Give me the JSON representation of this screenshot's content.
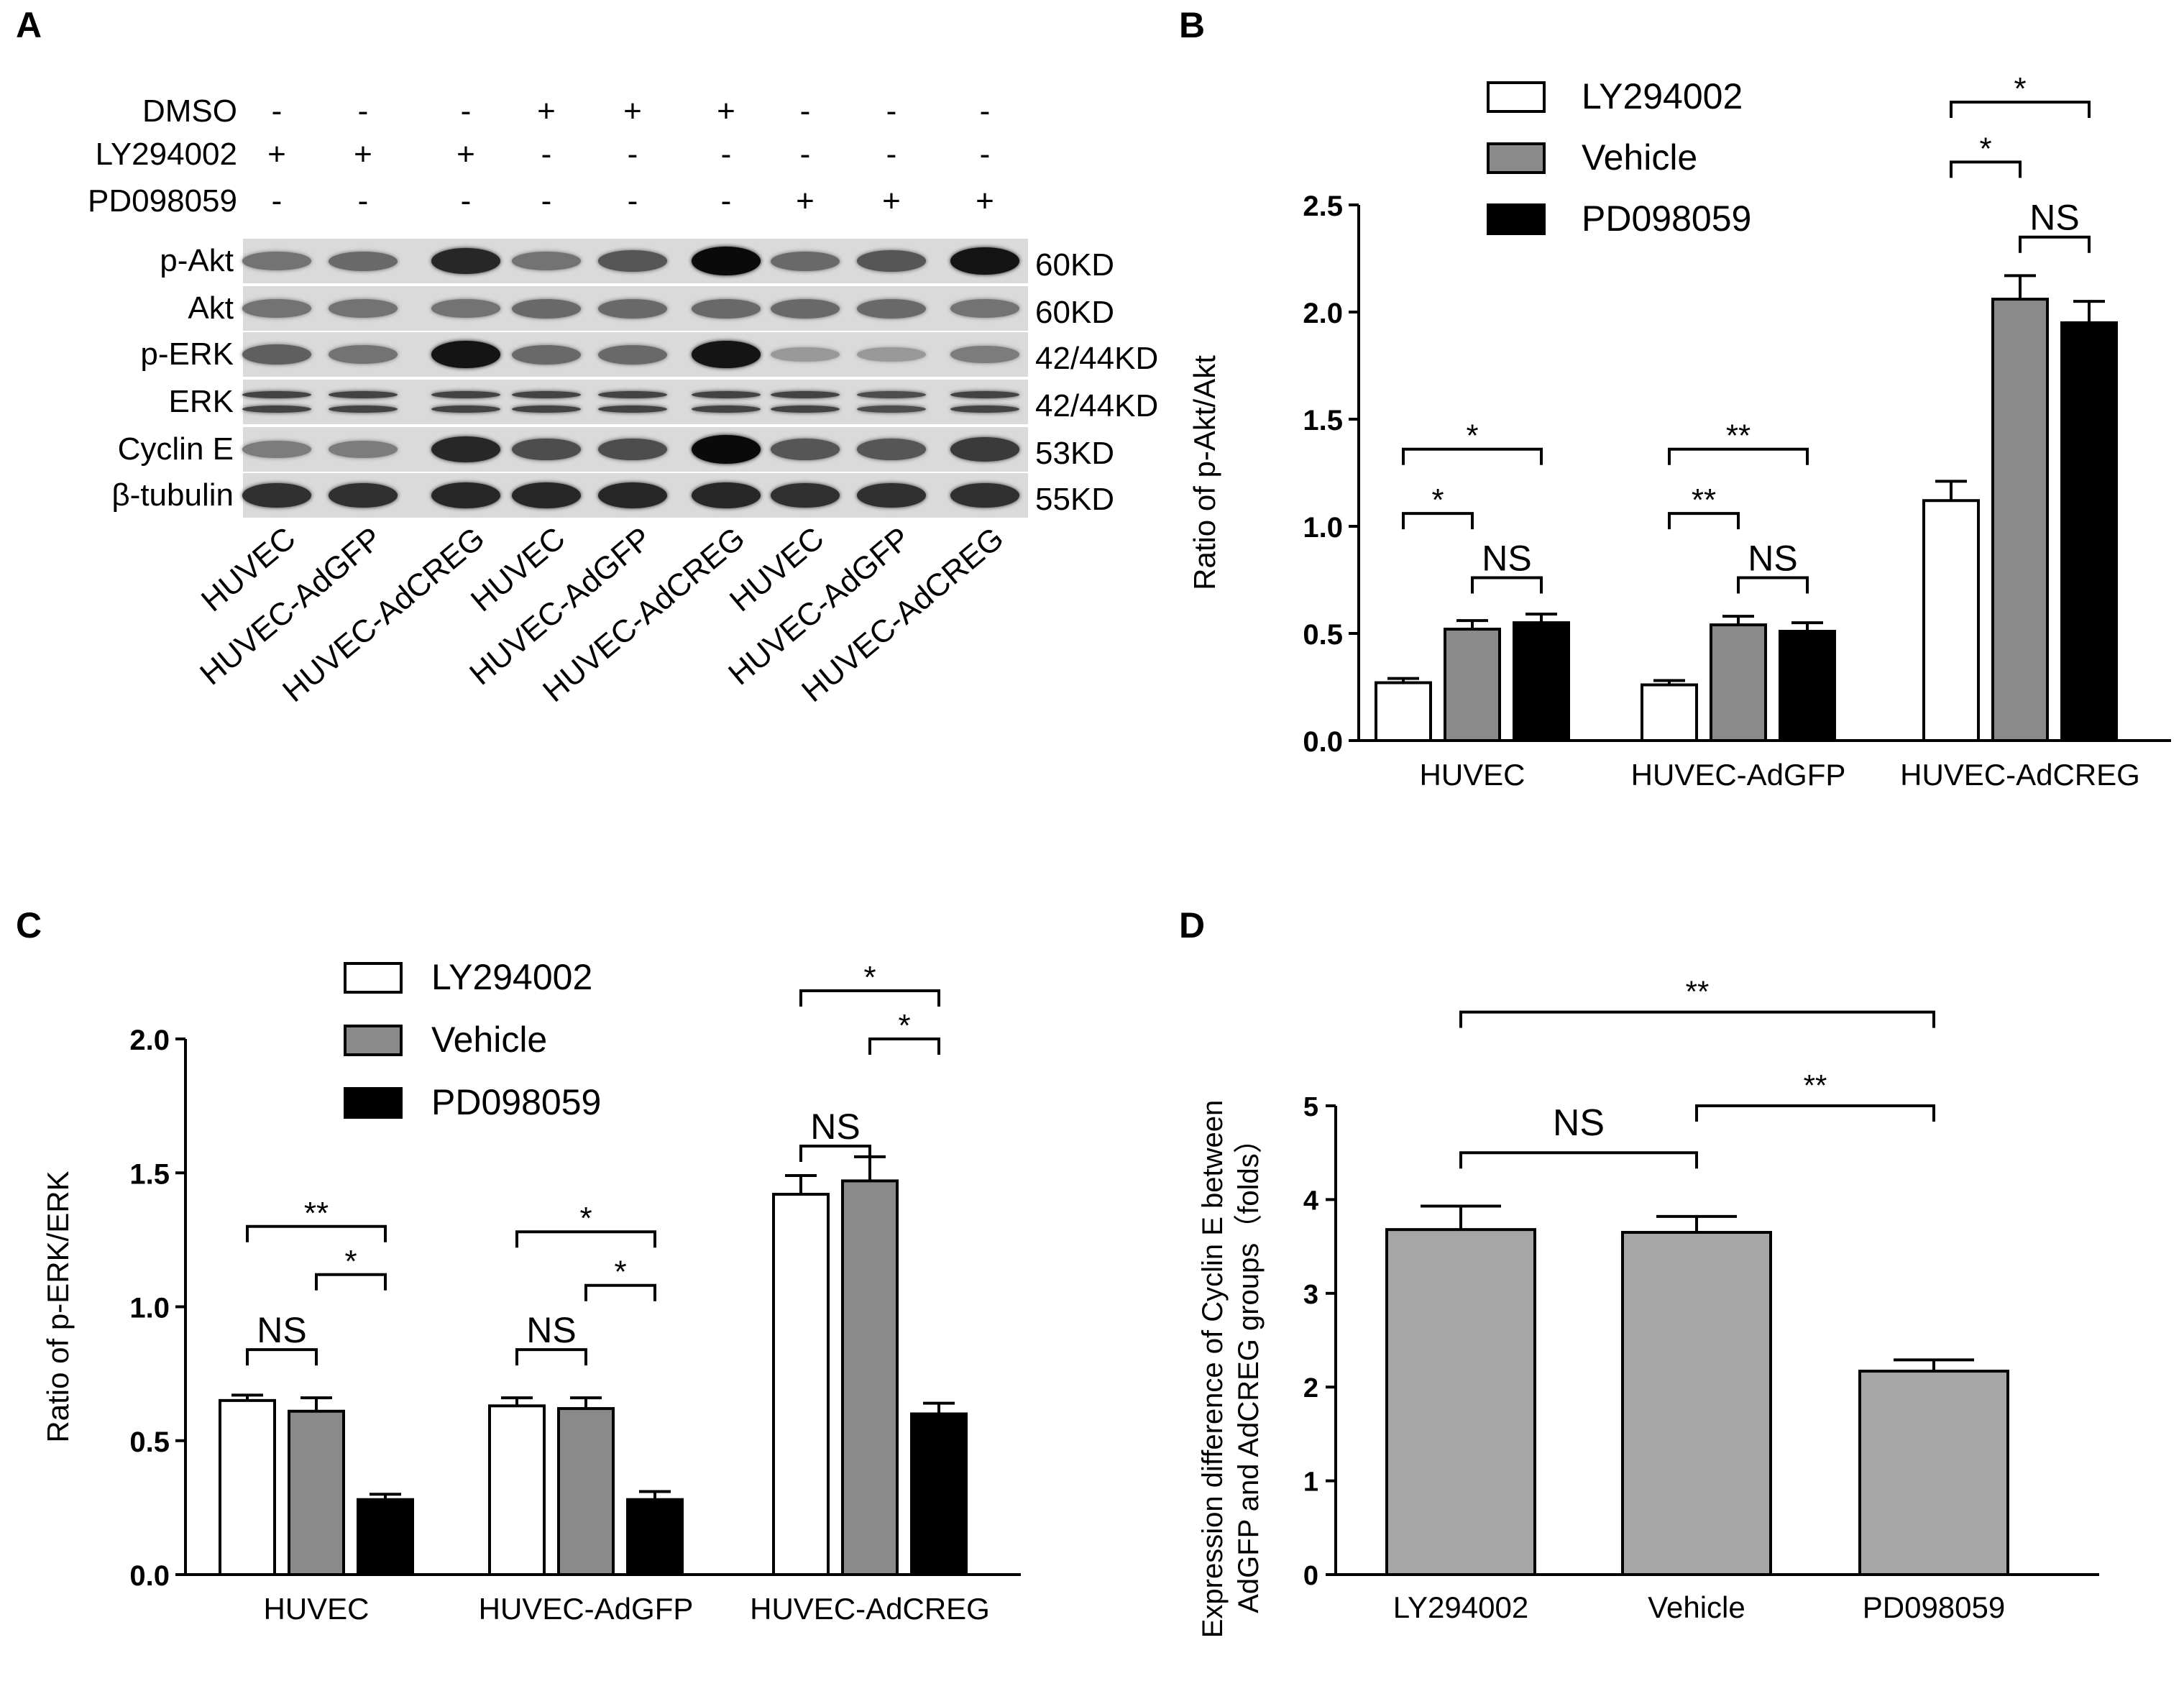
{
  "panels": {
    "a": {
      "letter": "A",
      "treatments": [
        {
          "label": "DMSO",
          "signs": [
            "-",
            "-",
            "-",
            "+",
            "+",
            "+",
            "-",
            "-",
            "-"
          ]
        },
        {
          "label": "LY294002",
          "signs": [
            "+",
            "+",
            "+",
            "-",
            "-",
            "-",
            "-",
            "-",
            "-"
          ]
        },
        {
          "label": "PD098059",
          "signs": [
            "-",
            "-",
            "-",
            "-",
            "-",
            "-",
            "+",
            "+",
            "+"
          ]
        }
      ],
      "blots": [
        {
          "label": "p-Akt",
          "kd": "60KD",
          "intensity": [
            0.45,
            0.5,
            0.85,
            0.45,
            0.6,
            1.0,
            0.5,
            0.6,
            0.95
          ],
          "double": false
        },
        {
          "label": "Akt",
          "kd": "60KD",
          "intensity": [
            0.45,
            0.45,
            0.45,
            0.5,
            0.5,
            0.5,
            0.5,
            0.5,
            0.45
          ],
          "double": false
        },
        {
          "label": "p-ERK",
          "kd": "42/44KD",
          "intensity": [
            0.55,
            0.45,
            0.95,
            0.5,
            0.5,
            0.95,
            0.25,
            0.25,
            0.4
          ],
          "double": false
        },
        {
          "label": "ERK",
          "kd": "42/44KD",
          "intensity": [
            0.7,
            0.7,
            0.7,
            0.7,
            0.7,
            0.7,
            0.7,
            0.65,
            0.7
          ],
          "double": true
        },
        {
          "label": "Cyclin E",
          "kd": "53KD",
          "intensity": [
            0.4,
            0.4,
            0.85,
            0.65,
            0.65,
            1.0,
            0.6,
            0.6,
            0.75
          ],
          "double": false
        },
        {
          "label": "β-tubulin",
          "kd": "55KD",
          "intensity": [
            0.8,
            0.8,
            0.85,
            0.85,
            0.85,
            0.85,
            0.8,
            0.8,
            0.8
          ],
          "double": false
        }
      ],
      "lanes": [
        "HUVEC",
        "HUVEC-AdGFP",
        "HUVEC-AdCREG",
        "HUVEC",
        "HUVEC-AdGFP",
        "HUVEC-AdCREG",
        "HUVEC",
        "HUVEC-AdGFP",
        "HUVEC-AdCREG"
      ]
    },
    "b": {
      "letter": "B"
    },
    "c": {
      "letter": "C"
    },
    "d": {
      "letter": "D"
    }
  },
  "colors": {
    "white": "#ffffff",
    "gray": "#8a8a8a",
    "black": "#000000",
    "d_bar": "#a6a6a6",
    "bracket": "#000000"
  },
  "chart_data": [
    {
      "id": "B",
      "type": "bar",
      "categories": [
        "HUVEC",
        "HUVEC-AdGFP",
        "HUVEC-AdCREG"
      ],
      "series": [
        {
          "name": "LY294002",
          "values": [
            0.27,
            0.26,
            1.12
          ],
          "errors": [
            0.02,
            0.02,
            0.09
          ],
          "color": "#ffffff"
        },
        {
          "name": "Vehicle",
          "values": [
            0.52,
            0.54,
            2.06
          ],
          "errors": [
            0.04,
            0.04,
            0.11
          ],
          "color": "#8a8a8a"
        },
        {
          "name": "PD098059",
          "values": [
            0.55,
            0.51,
            1.95
          ],
          "errors": [
            0.04,
            0.04,
            0.1
          ],
          "color": "#000000"
        }
      ],
      "ylabel": "Ratio of p-Akt/Akt",
      "ylim": [
        0,
        2.5
      ],
      "yticks": [
        "0.0",
        "0.5",
        "1.0",
        "1.5",
        "2.0",
        "2.5"
      ],
      "legend": "top-center",
      "annotations": [
        {
          "group": 0,
          "from": 0,
          "to": 2,
          "label": "*",
          "level": 1.36
        },
        {
          "group": 0,
          "from": 0,
          "to": 1,
          "label": "*",
          "level": 1.06
        },
        {
          "group": 0,
          "from": 1,
          "to": 2,
          "label": "NS",
          "level": 0.76
        },
        {
          "group": 1,
          "from": 0,
          "to": 2,
          "label": "**",
          "level": 1.36
        },
        {
          "group": 1,
          "from": 0,
          "to": 1,
          "label": "**",
          "level": 1.06
        },
        {
          "group": 1,
          "from": 1,
          "to": 2,
          "label": "NS",
          "level": 0.76
        },
        {
          "group": 2,
          "from": 0,
          "to": 2,
          "label": "*",
          "level": 2.98
        },
        {
          "group": 2,
          "from": 0,
          "to": 1,
          "label": "*",
          "level": 2.7
        },
        {
          "group": 2,
          "from": 1,
          "to": 2,
          "label": "NS",
          "level": 2.35
        }
      ]
    },
    {
      "id": "C",
      "type": "bar",
      "categories": [
        "HUVEC",
        "HUVEC-AdGFP",
        "HUVEC-AdCREG"
      ],
      "series": [
        {
          "name": "LY294002",
          "values": [
            0.65,
            0.63,
            1.42
          ],
          "errors": [
            0.02,
            0.03,
            0.07
          ],
          "color": "#ffffff"
        },
        {
          "name": "Vehicle",
          "values": [
            0.61,
            0.62,
            1.47
          ],
          "errors": [
            0.05,
            0.04,
            0.09
          ],
          "color": "#8a8a8a"
        },
        {
          "name": "PD098059",
          "values": [
            0.28,
            0.28,
            0.6
          ],
          "errors": [
            0.02,
            0.03,
            0.04
          ],
          "color": "#000000"
        }
      ],
      "ylabel": "Ratio of p-ERK/ERK",
      "ylim": [
        0,
        2.0
      ],
      "yticks": [
        "0.0",
        "0.5",
        "1.0",
        "1.5",
        "2.0"
      ],
      "legend": "top-center",
      "annotations": [
        {
          "group": 0,
          "from": 0,
          "to": 2,
          "label": "**",
          "level": 1.3
        },
        {
          "group": 0,
          "from": 1,
          "to": 2,
          "label": "*",
          "level": 1.12
        },
        {
          "group": 0,
          "from": 0,
          "to": 1,
          "label": "NS",
          "level": 0.84
        },
        {
          "group": 1,
          "from": 0,
          "to": 2,
          "label": "*",
          "level": 1.28
        },
        {
          "group": 1,
          "from": 1,
          "to": 2,
          "label": "*",
          "level": 1.08
        },
        {
          "group": 1,
          "from": 0,
          "to": 1,
          "label": "NS",
          "level": 0.84
        },
        {
          "group": 2,
          "from": 0,
          "to": 2,
          "label": "*",
          "level": 2.18
        },
        {
          "group": 2,
          "from": 1,
          "to": 2,
          "label": "*",
          "level": 2.0
        },
        {
          "group": 2,
          "from": 0,
          "to": 1,
          "label": "NS",
          "level": 1.6
        }
      ]
    },
    {
      "id": "D",
      "type": "bar",
      "categories": [
        "LY294002",
        "Vehicle",
        "PD098059"
      ],
      "values": [
        3.68,
        3.65,
        2.17
      ],
      "errors": [
        0.25,
        0.17,
        0.12
      ],
      "color": "#a6a6a6",
      "ylabel_lines": [
        "Expression difference of Cyclin E between",
        "AdGFP and AdCREG groups（folds）"
      ],
      "ylim": [
        0,
        5
      ],
      "yticks": [
        "0",
        "1",
        "2",
        "3",
        "4",
        "5"
      ],
      "annotations": [
        {
          "from": 0,
          "to": 2,
          "label": "**",
          "level": 6.0
        },
        {
          "from": 1,
          "to": 2,
          "label": "**",
          "level": 5.0
        },
        {
          "from": 0,
          "to": 1,
          "label": "NS",
          "level": 4.5
        }
      ]
    }
  ]
}
